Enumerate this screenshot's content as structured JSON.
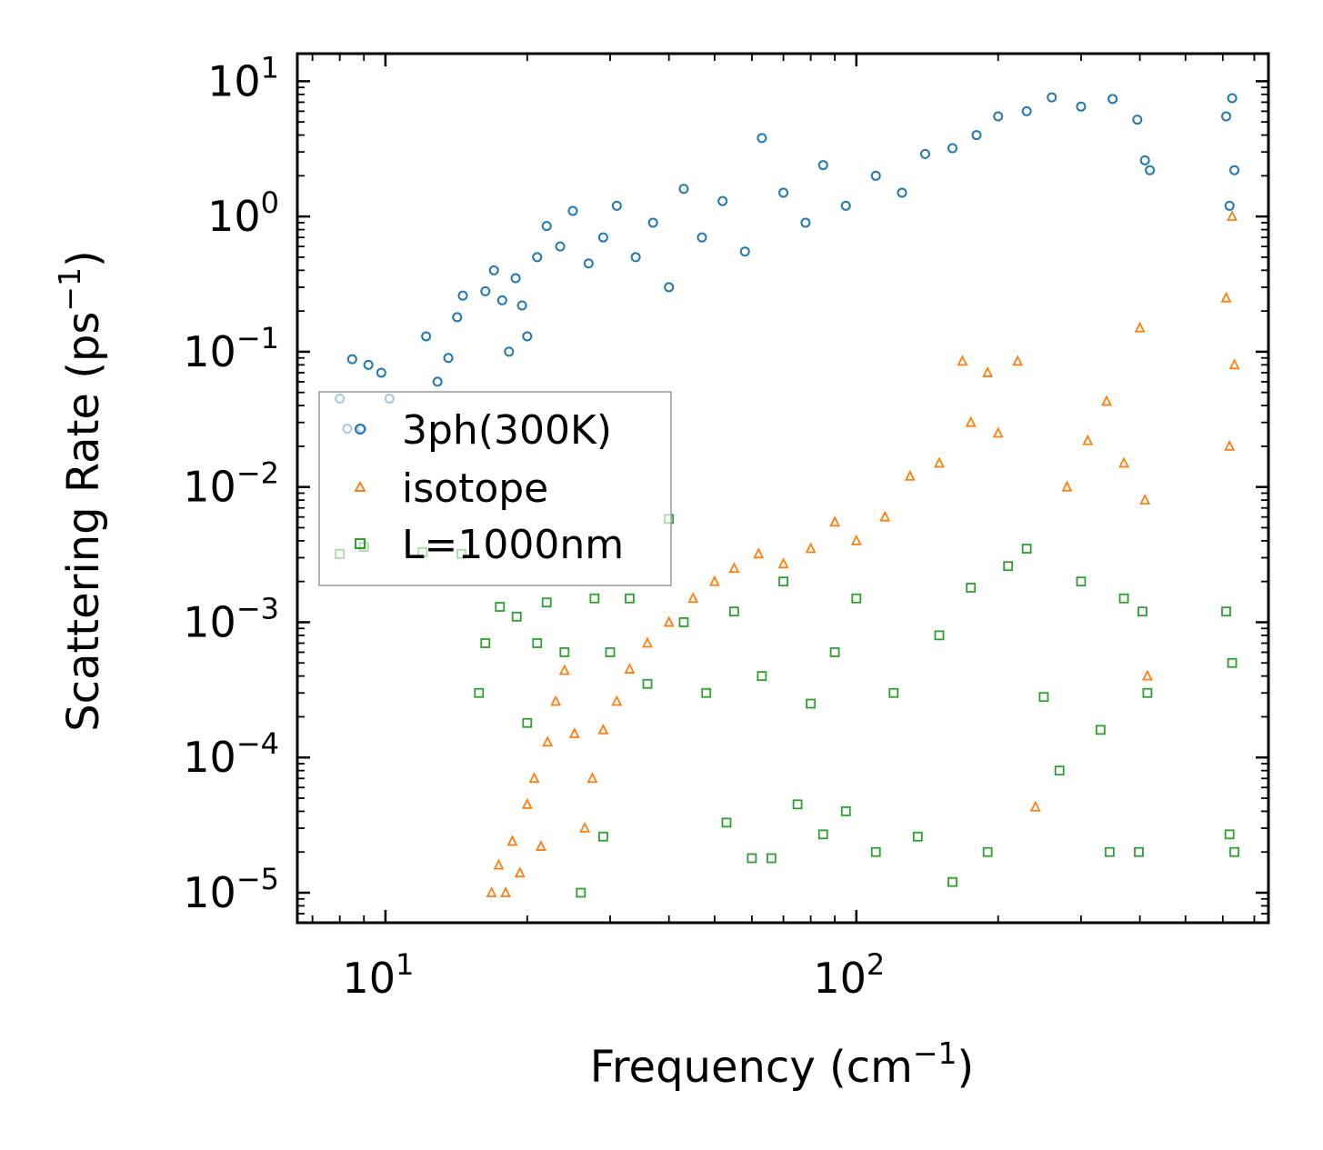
{
  "chart_data": {
    "type": "scatter",
    "xscale": "log",
    "yscale": "log",
    "xlim": [
      6.5,
      750
    ],
    "ylim": [
      6e-06,
      16
    ],
    "xlabel": "Frequency (cm",
    "xlabel_exp": "−1",
    "xlabel_end": ")",
    "ylabel": "Scattering Rate (ps",
    "ylabel_exp": "−1",
    "ylabel_end": ")",
    "x_ticks": [
      {
        "base": "10",
        "exp": "1",
        "value": 10
      },
      {
        "base": "10",
        "exp": "2",
        "value": 100
      }
    ],
    "y_ticks": [
      {
        "base": "10",
        "exp": "1",
        "value": 10
      },
      {
        "base": "10",
        "exp": "0",
        "value": 1
      },
      {
        "base": "10",
        "exp": "−1",
        "value": 0.1
      },
      {
        "base": "10",
        "exp": "−2",
        "value": 0.01
      },
      {
        "base": "10",
        "exp": "−3",
        "value": 0.001
      },
      {
        "base": "10",
        "exp": "−4",
        "value": 0.0001
      },
      {
        "base": "10",
        "exp": "−5",
        "value": 1e-05
      }
    ],
    "legend_position": "center-left",
    "series": [
      {
        "name": "3ph(300K)",
        "marker": "circle",
        "color": "#1f77b4",
        "points": [
          [
            8.0,
            0.045
          ],
          [
            8.3,
            0.027
          ],
          [
            8.5,
            0.088
          ],
          [
            8.9,
            0.027
          ],
          [
            9.2,
            0.08
          ],
          [
            9.8,
            0.07
          ],
          [
            10.2,
            0.045
          ],
          [
            12.2,
            0.13
          ],
          [
            12.9,
            0.06
          ],
          [
            13.6,
            0.09
          ],
          [
            14.2,
            0.18
          ],
          [
            14.6,
            0.26
          ],
          [
            16.3,
            0.28
          ],
          [
            17.0,
            0.4
          ],
          [
            17.7,
            0.24
          ],
          [
            18.3,
            0.1
          ],
          [
            18.9,
            0.35
          ],
          [
            19.5,
            0.22
          ],
          [
            20.0,
            0.13
          ],
          [
            21.0,
            0.5
          ],
          [
            22.0,
            0.85
          ],
          [
            23.5,
            0.6
          ],
          [
            25.0,
            1.1
          ],
          [
            27.0,
            0.45
          ],
          [
            29.0,
            0.7
          ],
          [
            31.0,
            1.2
          ],
          [
            34.0,
            0.5
          ],
          [
            37.0,
            0.9
          ],
          [
            40.0,
            0.3
          ],
          [
            43.0,
            1.6
          ],
          [
            47.0,
            0.7
          ],
          [
            52.0,
            1.3
          ],
          [
            58.0,
            0.55
          ],
          [
            63.0,
            3.8
          ],
          [
            70.0,
            1.5
          ],
          [
            78.0,
            0.9
          ],
          [
            85.0,
            2.4
          ],
          [
            95.0,
            1.2
          ],
          [
            110.0,
            2.0
          ],
          [
            125.0,
            1.5
          ],
          [
            140.0,
            2.9
          ],
          [
            160.0,
            3.2
          ],
          [
            180.0,
            4.0
          ],
          [
            200.0,
            5.5
          ],
          [
            230.0,
            6.0
          ],
          [
            260.0,
            7.6
          ],
          [
            300.0,
            6.5
          ],
          [
            350.0,
            7.4
          ],
          [
            395.0,
            5.2
          ],
          [
            410.0,
            2.6
          ],
          [
            420.0,
            2.2
          ],
          [
            610.0,
            5.5
          ],
          [
            620.0,
            1.2
          ],
          [
            628.0,
            7.5
          ],
          [
            635.0,
            2.2
          ]
        ]
      },
      {
        "name": "isotope",
        "marker": "triangle",
        "color": "#ff7f0e",
        "points": [
          [
            16.8,
            1e-05
          ],
          [
            17.4,
            1.6e-05
          ],
          [
            18.0,
            1e-05
          ],
          [
            18.6,
            2.4e-05
          ],
          [
            19.3,
            1.4e-05
          ],
          [
            20.0,
            4.5e-05
          ],
          [
            20.7,
            7e-05
          ],
          [
            21.4,
            2.2e-05
          ],
          [
            22.1,
            0.00013
          ],
          [
            23.0,
            0.00026
          ],
          [
            24.0,
            0.00044
          ],
          [
            25.2,
            0.00015
          ],
          [
            26.5,
            3e-05
          ],
          [
            27.5,
            7e-05
          ],
          [
            29.0,
            0.00016
          ],
          [
            31.0,
            0.00026
          ],
          [
            33.0,
            0.00045
          ],
          [
            36.0,
            0.0007
          ],
          [
            40.0,
            0.001
          ],
          [
            45.0,
            0.0015
          ],
          [
            50.0,
            0.002
          ],
          [
            55.0,
            0.0025
          ],
          [
            62.0,
            0.0032
          ],
          [
            70.0,
            0.0027
          ],
          [
            80.0,
            0.0035
          ],
          [
            90.0,
            0.0055
          ],
          [
            100.0,
            0.004
          ],
          [
            115.0,
            0.006
          ],
          [
            130.0,
            0.012
          ],
          [
            150.0,
            0.015
          ],
          [
            168.0,
            0.085
          ],
          [
            175.0,
            0.03
          ],
          [
            190.0,
            0.07
          ],
          [
            200.0,
            0.025
          ],
          [
            220.0,
            0.085
          ],
          [
            240.0,
            4.3e-05
          ],
          [
            280.0,
            0.01
          ],
          [
            310.0,
            0.022
          ],
          [
            340.0,
            0.043
          ],
          [
            370.0,
            0.015
          ],
          [
            400.0,
            0.15
          ],
          [
            410.0,
            0.008
          ],
          [
            415.0,
            0.0004
          ],
          [
            610.0,
            0.25
          ],
          [
            620.0,
            0.02
          ],
          [
            628.0,
            1.0
          ],
          [
            635.0,
            0.08
          ]
        ]
      },
      {
        "name": "L=1000nm",
        "marker": "square",
        "color": "#2ca02c",
        "points": [
          [
            8.0,
            0.0032
          ],
          [
            9.0,
            0.0036
          ],
          [
            12.0,
            0.0033
          ],
          [
            14.5,
            0.0032
          ],
          [
            15.8,
            0.0003
          ],
          [
            16.3,
            0.0007
          ],
          [
            17.5,
            0.0013
          ],
          [
            19.0,
            0.0011
          ],
          [
            20.0,
            0.00018
          ],
          [
            21.0,
            0.0007
          ],
          [
            22.0,
            0.0014
          ],
          [
            24.0,
            0.0006
          ],
          [
            26.0,
            1e-05
          ],
          [
            27.8,
            0.0015
          ],
          [
            29.0,
            2.6e-05
          ],
          [
            30.0,
            0.0006
          ],
          [
            33.0,
            0.0015
          ],
          [
            36.0,
            0.00035
          ],
          [
            40.0,
            0.0058
          ],
          [
            43.0,
            0.001
          ],
          [
            48.0,
            0.0003
          ],
          [
            53.0,
            3.3e-05
          ],
          [
            55.0,
            0.0012
          ],
          [
            60.0,
            1.8e-05
          ],
          [
            63.0,
            0.0004
          ],
          [
            66.0,
            1.8e-05
          ],
          [
            70.0,
            0.002
          ],
          [
            75.0,
            4.5e-05
          ],
          [
            80.0,
            0.00025
          ],
          [
            85.0,
            2.7e-05
          ],
          [
            90.0,
            0.0006
          ],
          [
            95.0,
            4e-05
          ],
          [
            100.0,
            0.0015
          ],
          [
            110.0,
            2e-05
          ],
          [
            120.0,
            0.0003
          ],
          [
            135.0,
            2.6e-05
          ],
          [
            150.0,
            0.0008
          ],
          [
            160.0,
            1.2e-05
          ],
          [
            175.0,
            0.0018
          ],
          [
            190.0,
            2e-05
          ],
          [
            210.0,
            0.0026
          ],
          [
            230.0,
            0.0035
          ],
          [
            250.0,
            0.00028
          ],
          [
            270.0,
            8e-05
          ],
          [
            300.0,
            0.002
          ],
          [
            330.0,
            0.00016
          ],
          [
            345.0,
            2e-05
          ],
          [
            370.0,
            0.0015
          ],
          [
            398.0,
            2e-05
          ],
          [
            405.0,
            0.0012
          ],
          [
            415.0,
            0.0003
          ],
          [
            610.0,
            0.0012
          ],
          [
            620.0,
            2.7e-05
          ],
          [
            628.0,
            0.0005
          ],
          [
            635.0,
            2e-05
          ]
        ]
      }
    ]
  }
}
